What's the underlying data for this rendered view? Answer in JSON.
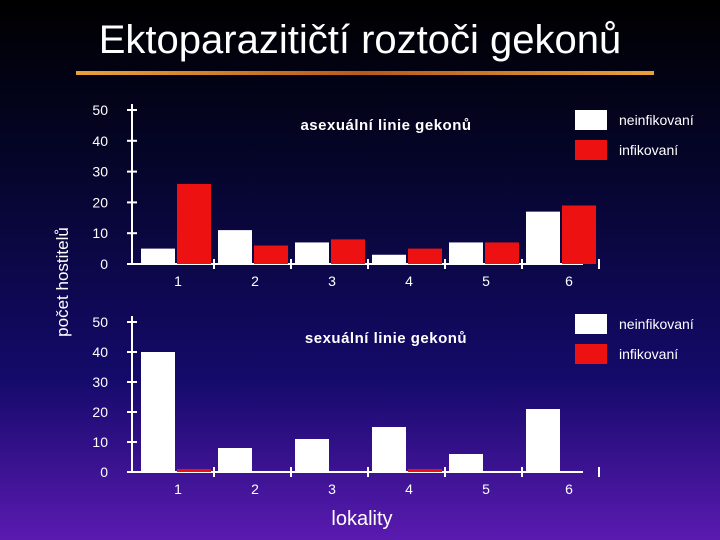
{
  "title": "Ektoparazitičtí roztoči gekonů",
  "ylabel": "počet hostitelů",
  "xlabel": "lokality",
  "colors": {
    "uninfected": "#ffffff",
    "infected": "#ee1111",
    "axis": "#ffffff"
  },
  "chart_data": [
    {
      "type": "bar",
      "title": "asexuální linie gekonů",
      "categories": [
        "1",
        "2",
        "3",
        "4",
        "5",
        "6"
      ],
      "yticks": [
        "0",
        "10",
        "20",
        "30",
        "40",
        "50"
      ],
      "ylim": [
        0,
        50
      ],
      "series": [
        {
          "name": "neinfikovaní",
          "values": [
            5,
            11,
            7,
            3,
            7,
            17
          ]
        },
        {
          "name": "infikovaní",
          "values": [
            26,
            6,
            8,
            5,
            7,
            19
          ]
        }
      ]
    },
    {
      "type": "bar",
      "title": "sexuální linie gekonů",
      "categories": [
        "1",
        "2",
        "3",
        "4",
        "5",
        "6"
      ],
      "yticks": [
        "0",
        "10",
        "20",
        "30",
        "40",
        "50"
      ],
      "ylim": [
        0,
        50
      ],
      "series": [
        {
          "name": "neinfikovaní",
          "values": [
            40,
            8,
            11,
            15,
            6,
            21
          ]
        },
        {
          "name": "infikovaní",
          "values": [
            1,
            0,
            0,
            1,
            0,
            0
          ]
        }
      ]
    }
  ]
}
